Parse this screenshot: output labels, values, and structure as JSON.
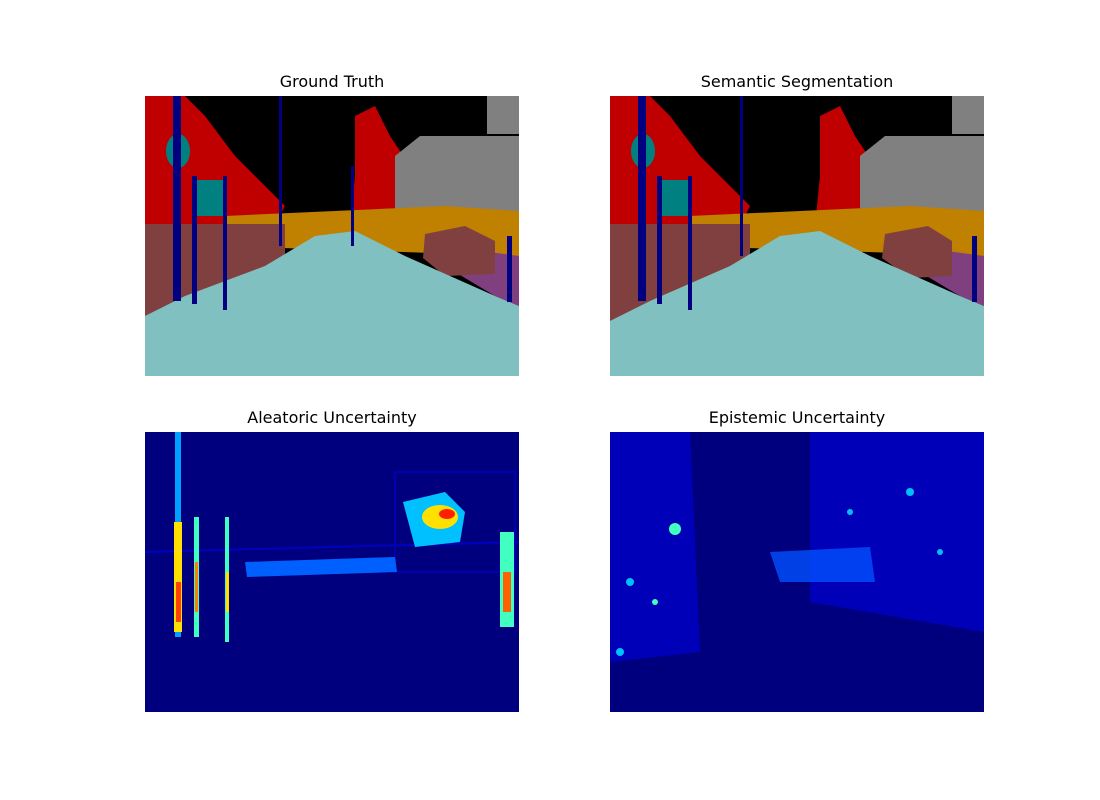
{
  "figure": {
    "panels": [
      {
        "title": "Ground Truth",
        "kind": "segmentation"
      },
      {
        "title": "Semantic Segmentation",
        "kind": "segmentation"
      },
      {
        "title": "Aleatoric Uncertainty",
        "kind": "uncertainty"
      },
      {
        "title": "Epistemic Uncertainty",
        "kind": "uncertainty"
      }
    ]
  },
  "colors": {
    "road": "#80c0c0",
    "sky": "#000000",
    "vegetation": "#c00000",
    "building": "#808080",
    "wall": "#804040",
    "pole": "#000080",
    "sign": "#008080",
    "fence": "#c08000",
    "sidewalk": "#804080",
    "uncertainty_low": "#00007f",
    "uncertainty_high": "#ff0000"
  }
}
